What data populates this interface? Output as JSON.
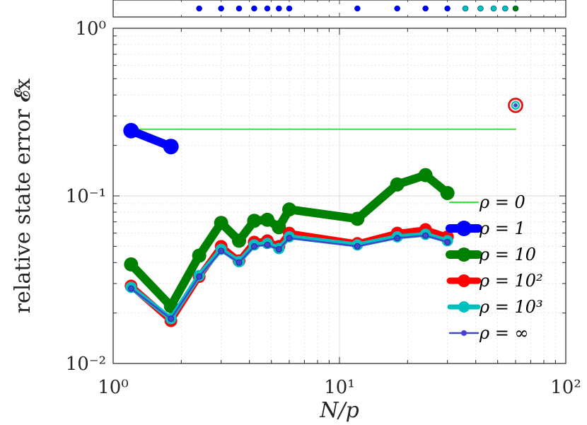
{
  "chart_data": {
    "type": "line",
    "xscale": "log",
    "yscale": "log",
    "xlim": [
      1,
      100
    ],
    "ylim": [
      0.01,
      1
    ],
    "grid": true,
    "ylabel": "relative state error 𝓔x",
    "xlabel": "N/p",
    "x_tick_labels": [
      "10⁰",
      "10¹",
      "10²"
    ],
    "y_tick_labels": [
      "10⁻²",
      "10⁻¹",
      "10⁰"
    ],
    "legend_position": "lower-right",
    "series": [
      {
        "name": "ρ = 0",
        "color": "#33e633",
        "x": [
          1.2,
          60
        ],
        "y": [
          0.25,
          0.25
        ]
      },
      {
        "name": "ρ = 1",
        "color": "#0000ff",
        "x": [
          1.2,
          1.8
        ],
        "y": [
          0.245,
          0.197
        ]
      },
      {
        "name": "ρ = 10",
        "color": "#008000",
        "x": [
          1.2,
          1.8,
          2.4,
          3.0,
          3.6,
          4.2,
          4.8,
          5.4,
          6.0,
          12,
          18,
          24,
          30
        ],
        "y": [
          0.039,
          0.022,
          0.044,
          0.069,
          0.054,
          0.071,
          0.072,
          0.065,
          0.083,
          0.073,
          0.117,
          0.133,
          0.104
        ]
      },
      {
        "name": "ρ = 10²",
        "color": "#ff0000",
        "x": [
          1.2,
          1.8,
          2.4,
          3.0,
          3.6,
          4.2,
          4.8,
          5.4,
          6.0,
          12,
          18,
          24,
          30,
          60
        ],
        "y": [
          0.029,
          0.018,
          0.033,
          0.05,
          0.041,
          0.053,
          0.054,
          0.05,
          0.06,
          0.052,
          0.06,
          0.063,
          0.057,
          0.347
        ]
      },
      {
        "name": "ρ = 10³",
        "color": "#00bfbf",
        "x": [
          1.2,
          1.8,
          2.4,
          3.0,
          3.6,
          4.2,
          4.8,
          5.4,
          6.0,
          12,
          18,
          24,
          30,
          60
        ],
        "y": [
          0.0285,
          0.0185,
          0.0335,
          0.048,
          0.0405,
          0.051,
          0.052,
          0.0485,
          0.057,
          0.051,
          0.057,
          0.059,
          0.054,
          0.347
        ]
      },
      {
        "name": "ρ = ∞",
        "color": "#4444cc",
        "x": [
          1.2,
          1.8,
          2.4,
          3.0,
          3.6,
          4.2,
          4.8,
          5.4,
          6.0,
          12,
          18,
          24,
          30,
          60
        ],
        "y": [
          0.028,
          0.0185,
          0.033,
          0.047,
          0.04,
          0.05,
          0.051,
          0.048,
          0.056,
          0.05,
          0.056,
          0.058,
          0.053,
          0.347
        ]
      }
    ],
    "top_strip": {
      "points": [
        {
          "x": 2.4,
          "color": "#0000ff"
        },
        {
          "x": 3.0,
          "color": "#0000ff"
        },
        {
          "x": 3.6,
          "color": "#0000ff"
        },
        {
          "x": 4.2,
          "color": "#0000ff"
        },
        {
          "x": 4.8,
          "color": "#0000ff"
        },
        {
          "x": 5.4,
          "color": "#0000ff"
        },
        {
          "x": 6.0,
          "color": "#0000ff"
        },
        {
          "x": 12,
          "color": "#0000ff"
        },
        {
          "x": 18,
          "color": "#0000ff"
        },
        {
          "x": 24,
          "color": "#0000ff"
        },
        {
          "x": 30,
          "color": "#0000ff"
        },
        {
          "x": 36,
          "color": "#00bfbf"
        },
        {
          "x": 42,
          "color": "#00bfbf"
        },
        {
          "x": 48,
          "color": "#00bfbf"
        },
        {
          "x": 54,
          "color": "#00bfbf"
        },
        {
          "x": 60,
          "color": "#008000"
        }
      ]
    }
  }
}
